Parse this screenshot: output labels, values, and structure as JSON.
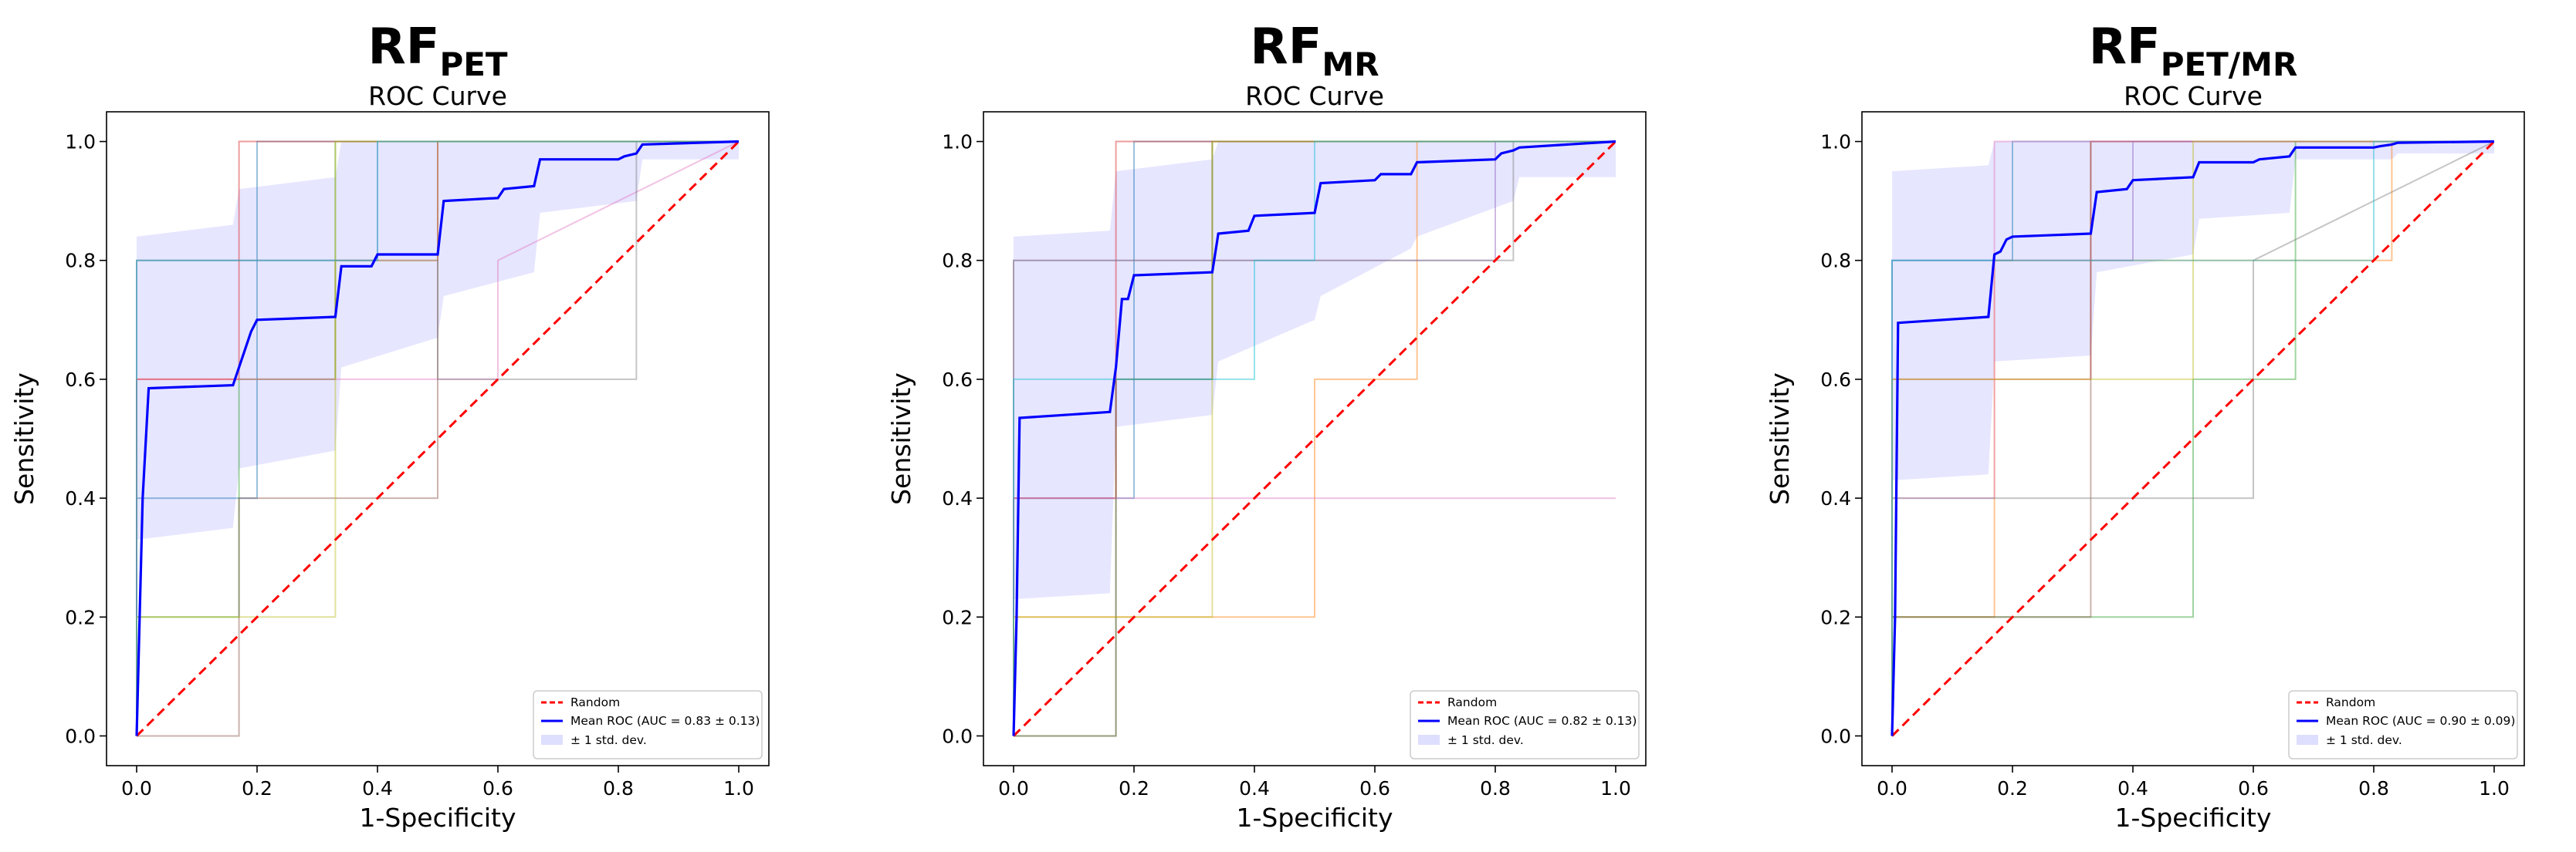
{
  "chart_data": [
    {
      "type": "line",
      "title_main": "RF",
      "title_sub": "PET",
      "subtitle": "ROC Curve",
      "xlabel": "1-Specificity",
      "ylabel": "Sensitivity",
      "xlim": [
        -0.05,
        1.05
      ],
      "ylim": [
        -0.05,
        1.05
      ],
      "xticks": [
        "0.0",
        "0.2",
        "0.4",
        "0.6",
        "0.8",
        "1.0"
      ],
      "yticks": [
        "0.0",
        "0.2",
        "0.4",
        "0.6",
        "0.8",
        "1.0"
      ],
      "grid": false,
      "legend_position": "lower-right",
      "legend": [
        "Random",
        "Mean ROC (AUC = 0.83 ± 0.13)",
        "± 1 std. dev."
      ],
      "series": [
        {
          "name": "Random",
          "color": "#ff0000",
          "style": "dashed",
          "x": [
            0,
            1
          ],
          "y": [
            0,
            1
          ]
        },
        {
          "name": "Mean ROC (AUC = 0.83 ± 0.13)",
          "color": "#0000ff",
          "x": [
            0,
            0.01,
            0.02,
            0.16,
            0.17,
            0.19,
            0.2,
            0.33,
            0.34,
            0.39,
            0.4,
            0.5,
            0.51,
            0.6,
            0.61,
            0.66,
            0.67,
            0.8,
            0.81,
            0.83,
            0.84,
            1.0
          ],
          "y": [
            0,
            0.4,
            0.585,
            0.59,
            0.62,
            0.68,
            0.7,
            0.705,
            0.79,
            0.79,
            0.81,
            0.81,
            0.9,
            0.905,
            0.92,
            0.925,
            0.97,
            0.97,
            0.975,
            0.98,
            0.995,
            1.0
          ]
        },
        {
          "name": "± 1 std. dev.",
          "color": "#c8c8ff",
          "type": "band",
          "x": [
            0,
            0.16,
            0.17,
            0.33,
            0.34,
            0.5,
            0.51,
            0.66,
            0.67,
            0.83,
            0.84,
            1.0
          ],
          "lower": [
            0.33,
            0.35,
            0.45,
            0.48,
            0.62,
            0.67,
            0.74,
            0.78,
            0.88,
            0.9,
            0.97,
            0.97
          ],
          "upper": [
            0.84,
            0.86,
            0.92,
            0.94,
            1.0,
            1.0,
            1.0,
            1.0,
            1.0,
            1.0,
            1.0,
            1.0
          ]
        }
      ],
      "folds": [
        {
          "color": "#1f77b4",
          "x": [
            0,
            0,
            0.2,
            0.2,
            0.6,
            0.6,
            1
          ],
          "y": [
            0,
            0.4,
            0.4,
            1,
            1,
            1,
            1
          ]
        },
        {
          "color": "#ff7f0e",
          "x": [
            0,
            0,
            0.33,
            0.33,
            0.5,
            0.5,
            1
          ],
          "y": [
            0,
            0.6,
            0.6,
            0.8,
            0.8,
            1,
            1
          ]
        },
        {
          "color": "#2ca02c",
          "x": [
            0,
            0,
            0.17,
            0.17,
            0.33,
            0.33,
            1
          ],
          "y": [
            0,
            0.2,
            0.2,
            0.6,
            0.6,
            1,
            1
          ]
        },
        {
          "color": "#d62728",
          "x": [
            0,
            0,
            0.17,
            0.17,
            1
          ],
          "y": [
            0,
            0.6,
            0.6,
            1,
            1
          ]
        },
        {
          "color": "#9467bd",
          "x": [
            0,
            0,
            0.4,
            0.4,
            0.83,
            0.83,
            1
          ],
          "y": [
            0,
            0.8,
            0.8,
            1,
            1,
            1,
            1
          ]
        },
        {
          "color": "#8c564b",
          "x": [
            0,
            0.17,
            0.17,
            0.5,
            0.5,
            1
          ],
          "y": [
            0,
            0,
            0.4,
            0.4,
            1,
            1
          ]
        },
        {
          "color": "#e377c2",
          "x": [
            0,
            0,
            0.6,
            0.6,
            1
          ],
          "y": [
            0,
            0.6,
            0.6,
            0.8,
            1
          ]
        },
        {
          "color": "#7f7f7f",
          "x": [
            0,
            0,
            0.5,
            0.5,
            0.83,
            0.83,
            1
          ],
          "y": [
            0,
            0.8,
            0.8,
            0.6,
            0.6,
            1,
            1
          ]
        },
        {
          "color": "#bcbd22",
          "x": [
            0,
            0,
            0.33,
            0.33,
            1
          ],
          "y": [
            0,
            0.2,
            0.2,
            1,
            1
          ]
        },
        {
          "color": "#17becf",
          "x": [
            0,
            0,
            0.4,
            0.4,
            0.67,
            0.67,
            1
          ],
          "y": [
            0,
            0.8,
            0.8,
            1,
            1,
            1,
            1
          ]
        }
      ]
    },
    {
      "type": "line",
      "title_main": "RF",
      "title_sub": "MR",
      "subtitle": "ROC Curve",
      "xlabel": "1-Specificity",
      "ylabel": "Sensitivity",
      "xlim": [
        -0.05,
        1.05
      ],
      "ylim": [
        -0.05,
        1.05
      ],
      "xticks": [
        "0.0",
        "0.2",
        "0.4",
        "0.6",
        "0.8",
        "1.0"
      ],
      "yticks": [
        "0.0",
        "0.2",
        "0.4",
        "0.6",
        "0.8",
        "1.0"
      ],
      "grid": false,
      "legend_position": "lower-right",
      "legend": [
        "Random",
        "Mean ROC (AUC = 0.82 ± 0.13)",
        "± 1 std. dev."
      ],
      "series": [
        {
          "name": "Random",
          "color": "#ff0000",
          "style": "dashed",
          "x": [
            0,
            1
          ],
          "y": [
            0,
            1
          ]
        },
        {
          "name": "Mean ROC (AUC = 0.82 ± 0.13)",
          "color": "#0000ff",
          "x": [
            0,
            0.005,
            0.01,
            0.16,
            0.17,
            0.18,
            0.19,
            0.2,
            0.33,
            0.34,
            0.39,
            0.4,
            0.5,
            0.51,
            0.6,
            0.61,
            0.66,
            0.67,
            0.8,
            0.81,
            0.83,
            0.84,
            1.0
          ],
          "y": [
            0,
            0.2,
            0.535,
            0.545,
            0.62,
            0.735,
            0.735,
            0.775,
            0.78,
            0.845,
            0.85,
            0.875,
            0.88,
            0.93,
            0.935,
            0.945,
            0.945,
            0.965,
            0.97,
            0.98,
            0.985,
            0.99,
            1.0
          ]
        },
        {
          "name": "± 1 std. dev.",
          "color": "#c8c8ff",
          "type": "band",
          "x": [
            0,
            0.16,
            0.17,
            0.33,
            0.34,
            0.5,
            0.51,
            0.66,
            0.67,
            0.83,
            0.84,
            1.0
          ],
          "lower": [
            0.23,
            0.24,
            0.52,
            0.54,
            0.63,
            0.7,
            0.74,
            0.82,
            0.84,
            0.9,
            0.94,
            0.94
          ],
          "upper": [
            0.84,
            0.85,
            0.95,
            0.97,
            1.0,
            1.0,
            1.0,
            1.0,
            1.0,
            1.0,
            1.0,
            1.0
          ]
        }
      ],
      "folds": [
        {
          "color": "#1f77b4",
          "x": [
            0,
            0,
            0.2,
            0.2,
            0.6,
            0.6,
            1
          ],
          "y": [
            0,
            0.4,
            0.4,
            1,
            1,
            1,
            1
          ]
        },
        {
          "color": "#ff7f0e",
          "x": [
            0,
            0,
            0.5,
            0.5,
            0.67,
            0.67,
            1
          ],
          "y": [
            0,
            0.2,
            0.2,
            0.6,
            0.6,
            1,
            1
          ]
        },
        {
          "color": "#2ca02c",
          "x": [
            0,
            0,
            0.17,
            0.17,
            0.33,
            0.33,
            1
          ],
          "y": [
            0,
            0.0,
            0.0,
            0.6,
            0.6,
            1,
            1
          ]
        },
        {
          "color": "#d62728",
          "x": [
            0,
            0,
            0.17,
            0.17,
            1
          ],
          "y": [
            0,
            0.4,
            0.4,
            1,
            1
          ]
        },
        {
          "color": "#9467bd",
          "x": [
            0,
            0,
            0.8,
            0.8,
            1
          ],
          "y": [
            0,
            0.8,
            0.8,
            1,
            1
          ]
        },
        {
          "color": "#8c564b",
          "x": [
            0,
            0.17,
            0.17,
            0.33,
            0.33,
            1
          ],
          "y": [
            0,
            0,
            0.6,
            0.6,
            1,
            1
          ]
        },
        {
          "color": "#e377c2",
          "x": [
            0,
            0,
            0.67,
            0.67,
            1
          ],
          "y": [
            0,
            0.4,
            0.4,
            0.4,
            0.4
          ]
        },
        {
          "color": "#7f7f7f",
          "x": [
            0,
            0,
            0.2,
            0.2,
            0.83,
            0.83,
            1
          ],
          "y": [
            0,
            0.8,
            0.8,
            0.8,
            0.8,
            1,
            1
          ]
        },
        {
          "color": "#bcbd22",
          "x": [
            0,
            0,
            0.33,
            0.33,
            1
          ],
          "y": [
            0,
            0.2,
            0.2,
            1,
            1
          ]
        },
        {
          "color": "#17becf",
          "x": [
            0,
            0,
            0.4,
            0.4,
            0.5,
            0.5,
            1
          ],
          "y": [
            0,
            0.6,
            0.6,
            0.8,
            0.8,
            1,
            1
          ]
        }
      ]
    },
    {
      "type": "line",
      "title_main": "RF",
      "title_sub": "PET/MR",
      "subtitle": "ROC Curve",
      "xlabel": "1-Specificity",
      "ylabel": "Sensitivity",
      "xlim": [
        -0.05,
        1.05
      ],
      "ylim": [
        -0.05,
        1.05
      ],
      "xticks": [
        "0.0",
        "0.2",
        "0.4",
        "0.6",
        "0.8",
        "1.0"
      ],
      "yticks": [
        "0.0",
        "0.2",
        "0.4",
        "0.6",
        "0.8",
        "1.0"
      ],
      "grid": false,
      "legend_position": "lower-right",
      "legend": [
        "Random",
        "Mean ROC (AUC = 0.90 ± 0.09)",
        "± 1 std. dev."
      ],
      "series": [
        {
          "name": "Random",
          "color": "#ff0000",
          "style": "dashed",
          "x": [
            0,
            1
          ],
          "y": [
            0,
            1
          ]
        },
        {
          "name": "Mean ROC (AUC = 0.90 ± 0.09)",
          "color": "#0000ff",
          "x": [
            0,
            0.005,
            0.01,
            0.16,
            0.17,
            0.18,
            0.19,
            0.2,
            0.33,
            0.34,
            0.39,
            0.4,
            0.5,
            0.51,
            0.6,
            0.61,
            0.66,
            0.67,
            0.8,
            0.81,
            0.83,
            0.84,
            1.0
          ],
          "y": [
            0,
            0.2,
            0.695,
            0.705,
            0.81,
            0.815,
            0.835,
            0.84,
            0.845,
            0.915,
            0.92,
            0.935,
            0.94,
            0.965,
            0.965,
            0.97,
            0.975,
            0.99,
            0.99,
            0.992,
            0.995,
            0.998,
            1.0
          ]
        },
        {
          "name": "± 1 std. dev.",
          "color": "#c8c8ff",
          "type": "band",
          "x": [
            0,
            0.16,
            0.17,
            0.33,
            0.34,
            0.5,
            0.51,
            0.66,
            0.67,
            0.83,
            0.84,
            1.0
          ],
          "lower": [
            0.43,
            0.44,
            0.63,
            0.64,
            0.78,
            0.81,
            0.87,
            0.88,
            0.97,
            0.97,
            0.98,
            0.98
          ],
          "upper": [
            0.95,
            0.96,
            1.0,
            1.0,
            1.0,
            1.0,
            1.0,
            1.0,
            1.0,
            1.0,
            1.0,
            1.0
          ]
        }
      ],
      "folds": [
        {
          "color": "#1f77b4",
          "x": [
            0,
            0,
            0.2,
            0.2,
            1
          ],
          "y": [
            0,
            0.8,
            0.8,
            1,
            1
          ]
        },
        {
          "color": "#ff7f0e",
          "x": [
            0,
            0,
            0.17,
            0.17,
            0.83,
            0.83,
            1
          ],
          "y": [
            0,
            0.2,
            0.2,
            0.8,
            0.8,
            1,
            1
          ]
        },
        {
          "color": "#2ca02c",
          "x": [
            0,
            0,
            0.5,
            0.5,
            0.67,
            0.67,
            1
          ],
          "y": [
            0,
            0.2,
            0.2,
            0.6,
            0.6,
            1,
            1
          ]
        },
        {
          "color": "#d62728",
          "x": [
            0,
            0,
            0.33,
            0.33,
            1
          ],
          "y": [
            0,
            0.6,
            0.6,
            1,
            1
          ]
        },
        {
          "color": "#9467bd",
          "x": [
            0,
            0,
            0.4,
            0.4,
            0.67,
            0.67,
            1
          ],
          "y": [
            0,
            0.8,
            0.8,
            1,
            1,
            1,
            1
          ]
        },
        {
          "color": "#8c564b",
          "x": [
            0,
            0,
            0.33,
            0.33,
            0.67,
            0.67,
            1
          ],
          "y": [
            0,
            0.2,
            0.2,
            1,
            1,
            1,
            1
          ]
        },
        {
          "color": "#e377c2",
          "x": [
            0,
            0,
            0.17,
            0.17,
            1
          ],
          "y": [
            0,
            0.4,
            0.4,
            1,
            1
          ]
        },
        {
          "color": "#7f7f7f",
          "x": [
            0,
            0,
            0.6,
            0.6,
            1
          ],
          "y": [
            0,
            0.4,
            0.4,
            0.8,
            1
          ]
        },
        {
          "color": "#bcbd22",
          "x": [
            0,
            0,
            0.5,
            0.5,
            1
          ],
          "y": [
            0,
            0.6,
            0.6,
            1,
            1
          ]
        },
        {
          "color": "#17becf",
          "x": [
            0,
            0,
            0.8,
            0.8,
            1
          ],
          "y": [
            0,
            0.8,
            0.8,
            1,
            1
          ]
        }
      ]
    }
  ]
}
